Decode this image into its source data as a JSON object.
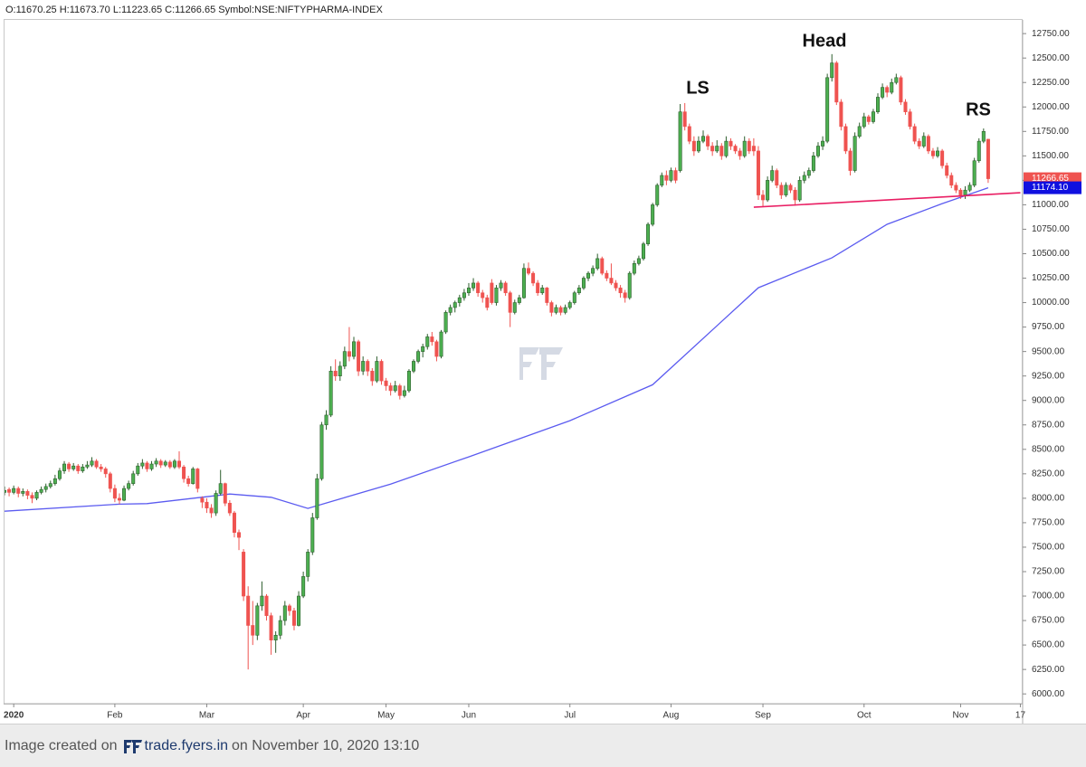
{
  "legend": "O:11670.25 H:11673.70 L:11223.65 C:11266.65 Symbol:NSE:NIFTYPHARMA-INDEX",
  "footer": {
    "prefix": "Image created on",
    "site": "trade.fyers.in",
    "suffix": "on November 10, 2020 13:10"
  },
  "chart_data": {
    "type": "candlestick",
    "up_color": "#4caf50",
    "down_color": "#ef5350",
    "grid": false,
    "ylim": [
      5900,
      12890
    ],
    "xlim": [
      0,
      221.5
    ],
    "yticks": [
      {
        "value": 6000,
        "label": "6000.00"
      },
      {
        "value": 6250,
        "label": "6250.00"
      },
      {
        "value": 6500,
        "label": "6500.00"
      },
      {
        "value": 6750,
        "label": "6750.00"
      },
      {
        "value": 7000,
        "label": "7000.00"
      },
      {
        "value": 7250,
        "label": "7250.00"
      },
      {
        "value": 7500,
        "label": "7500.00"
      },
      {
        "value": 7750,
        "label": "7750.00"
      },
      {
        "value": 8000,
        "label": "8000.00"
      },
      {
        "value": 8250,
        "label": "8250.00"
      },
      {
        "value": 8500,
        "label": "8500.00"
      },
      {
        "value": 8750,
        "label": "8750.00"
      },
      {
        "value": 9000,
        "label": "9000.00"
      },
      {
        "value": 9250,
        "label": "9250.00"
      },
      {
        "value": 9500,
        "label": "9500.00"
      },
      {
        "value": 9750,
        "label": "9750.00"
      },
      {
        "value": 10000,
        "label": "10000.00"
      },
      {
        "value": 10250,
        "label": "10250.00"
      },
      {
        "value": 10500,
        "label": "10500.00"
      },
      {
        "value": 10750,
        "label": "10750.00"
      },
      {
        "value": 11000,
        "label": "11000.00"
      },
      {
        "value": 11250,
        "label": "11250.00"
      },
      {
        "value": 11500,
        "label": "11500.00"
      },
      {
        "value": 11750,
        "label": "11750.00"
      },
      {
        "value": 12000,
        "label": "12000.00"
      },
      {
        "value": 12250,
        "label": "12250.00"
      },
      {
        "value": 12500,
        "label": "12500.00"
      },
      {
        "value": 12750,
        "label": "12750.00"
      }
    ],
    "xticks": [
      {
        "value": 2,
        "label": "2020"
      },
      {
        "value": 24,
        "label": "Feb"
      },
      {
        "value": 44,
        "label": "Mar"
      },
      {
        "value": 65,
        "label": "Apr"
      },
      {
        "value": 83,
        "label": "May"
      },
      {
        "value": 101,
        "label": "Jun"
      },
      {
        "value": 123,
        "label": "Jul"
      },
      {
        "value": 145,
        "label": "Aug"
      },
      {
        "value": 165,
        "label": "Sep"
      },
      {
        "value": 187,
        "label": "Oct"
      },
      {
        "value": 208,
        "label": "Nov"
      },
      {
        "value": 221,
        "label": "17"
      }
    ],
    "annotations": [
      "LS",
      "Head",
      "RS"
    ],
    "close_label": "11266.65",
    "ma": {
      "color": "#5b5bf0",
      "x": [
        0,
        25,
        31,
        49,
        58,
        66,
        84,
        101,
        123,
        141,
        155,
        164,
        180,
        192,
        204,
        214
      ],
      "values": [
        7868,
        7940,
        7945,
        8043,
        8010,
        7896,
        8145,
        8423,
        8793,
        9160,
        9763,
        10152,
        10457,
        10800,
        11012,
        11174.1
      ],
      "last_label": "11174.10"
    },
    "trendline": {
      "color": "#e91e63",
      "x": [
        163,
        221
      ],
      "values": [
        10975,
        11123
      ]
    },
    "candles": [
      [
        8060,
        8120,
        8030,
        8080
      ],
      [
        8090,
        8110,
        8020,
        8060
      ],
      [
        8060,
        8130,
        8040,
        8100
      ],
      [
        8100,
        8120,
        8010,
        8050
      ],
      [
        8050,
        8100,
        8020,
        8070
      ],
      [
        8070,
        8090,
        7990,
        8030
      ],
      [
        8030,
        8060,
        7950,
        8000
      ],
      [
        8000,
        8080,
        7980,
        8060
      ],
      [
        8060,
        8120,
        8040,
        8090
      ],
      [
        8090,
        8150,
        8060,
        8120
      ],
      [
        8120,
        8180,
        8100,
        8150
      ],
      [
        8150,
        8240,
        8130,
        8200
      ],
      [
        8200,
        8310,
        8180,
        8280
      ],
      [
        8280,
        8380,
        8250,
        8350
      ],
      [
        8350,
        8370,
        8270,
        8300
      ],
      [
        8300,
        8360,
        8280,
        8330
      ],
      [
        8330,
        8350,
        8250,
        8280
      ],
      [
        8280,
        8350,
        8260,
        8320
      ],
      [
        8320,
        8380,
        8300,
        8340
      ],
      [
        8340,
        8420,
        8320,
        8380
      ],
      [
        8380,
        8400,
        8300,
        8320
      ],
      [
        8320,
        8350,
        8270,
        8300
      ],
      [
        8300,
        8320,
        8210,
        8250
      ],
      [
        8250,
        8270,
        8060,
        8100
      ],
      [
        8100,
        8140,
        7960,
        8000
      ],
      [
        8000,
        8050,
        7940,
        7980
      ],
      [
        7980,
        8130,
        7970,
        8100
      ],
      [
        8100,
        8180,
        8080,
        8150
      ],
      [
        8150,
        8280,
        8130,
        8250
      ],
      [
        8250,
        8360,
        8230,
        8330
      ],
      [
        8330,
        8400,
        8300,
        8360
      ],
      [
        8360,
        8380,
        8270,
        8300
      ],
      [
        8300,
        8380,
        8280,
        8350
      ],
      [
        8350,
        8410,
        8320,
        8380
      ],
      [
        8380,
        8400,
        8310,
        8340
      ],
      [
        8340,
        8390,
        8320,
        8370
      ],
      [
        8370,
        8390,
        8300,
        8320
      ],
      [
        8320,
        8400,
        8300,
        8380
      ],
      [
        8380,
        8480,
        8300,
        8320
      ],
      [
        8320,
        8340,
        8160,
        8200
      ],
      [
        8200,
        8230,
        8120,
        8150
      ],
      [
        8150,
        8320,
        8140,
        8300
      ],
      [
        8300,
        8310,
        8060,
        8100
      ],
      [
        8000,
        8020,
        7900,
        7960
      ],
      [
        7960,
        8000,
        7850,
        7900
      ],
      [
        7900,
        7940,
        7800,
        7850
      ],
      [
        7850,
        8080,
        7820,
        8050
      ],
      [
        8050,
        8290,
        8030,
        8150
      ],
      [
        8150,
        8160,
        7920,
        7950
      ],
      [
        7950,
        7980,
        7820,
        7850
      ],
      [
        7850,
        7870,
        7600,
        7650
      ],
      [
        7650,
        7680,
        7470,
        7600
      ],
      [
        7450,
        7480,
        6950,
        7000
      ],
      [
        7000,
        7100,
        6250,
        6700
      ],
      [
        6700,
        6950,
        6500,
        6600
      ],
      [
        6600,
        6930,
        6550,
        6900
      ],
      [
        6900,
        7150,
        6850,
        7000
      ],
      [
        7000,
        7020,
        6750,
        6800
      ],
      [
        6800,
        6830,
        6400,
        6550
      ],
      [
        6550,
        6640,
        6420,
        6600
      ],
      [
        6600,
        6800,
        6560,
        6750
      ],
      [
        6750,
        6950,
        6700,
        6900
      ],
      [
        6900,
        6920,
        6800,
        6850
      ],
      [
        6850,
        6880,
        6650,
        6700
      ],
      [
        6700,
        7050,
        6690,
        7000
      ],
      [
        7000,
        7250,
        6980,
        7200
      ],
      [
        7200,
        7480,
        7150,
        7450
      ],
      [
        7450,
        7850,
        7420,
        7800
      ],
      [
        7800,
        8250,
        7780,
        8200
      ],
      [
        8200,
        8780,
        8180,
        8750
      ],
      [
        8750,
        8900,
        8700,
        8850
      ],
      [
        8850,
        9350,
        8830,
        9300
      ],
      [
        9300,
        9420,
        9200,
        9250
      ],
      [
        9250,
        9400,
        9200,
        9350
      ],
      [
        9350,
        9550,
        9320,
        9500
      ],
      [
        9500,
        9750,
        9400,
        9450
      ],
      [
        9450,
        9650,
        9420,
        9600
      ],
      [
        9600,
        9620,
        9250,
        9300
      ],
      [
        9300,
        9450,
        9260,
        9400
      ],
      [
        9400,
        9420,
        9250,
        9300
      ],
      [
        9300,
        9330,
        9150,
        9200
      ],
      [
        9200,
        9450,
        9180,
        9400
      ],
      [
        9400,
        9420,
        9160,
        9200
      ],
      [
        9200,
        9230,
        9100,
        9150
      ],
      [
        9150,
        9180,
        9050,
        9100
      ],
      [
        9100,
        9200,
        9080,
        9150
      ],
      [
        9150,
        9170,
        9010,
        9050
      ],
      [
        9050,
        9150,
        9030,
        9100
      ],
      [
        9100,
        9320,
        9080,
        9300
      ],
      [
        9300,
        9420,
        9280,
        9400
      ],
      [
        9400,
        9520,
        9380,
        9500
      ],
      [
        9500,
        9580,
        9440,
        9550
      ],
      [
        9550,
        9680,
        9520,
        9650
      ],
      [
        9650,
        9700,
        9560,
        9600
      ],
      [
        9600,
        9620,
        9400,
        9450
      ],
      [
        9450,
        9720,
        9430,
        9700
      ],
      [
        9700,
        9920,
        9680,
        9900
      ],
      [
        9900,
        9980,
        9870,
        9950
      ],
      [
        9950,
        10020,
        9900,
        10000
      ],
      [
        10000,
        10080,
        9960,
        10050
      ],
      [
        10050,
        10140,
        10020,
        10100
      ],
      [
        10100,
        10200,
        10070,
        10150
      ],
      [
        10150,
        10250,
        10120,
        10200
      ],
      [
        10200,
        10220,
        10060,
        10100
      ],
      [
        10100,
        10130,
        10000,
        10050
      ],
      [
        10050,
        10080,
        9920,
        9950
      ],
      [
        10200,
        10240,
        9980,
        10000
      ],
      [
        10000,
        10180,
        9970,
        10150
      ],
      [
        10150,
        10230,
        10120,
        10200
      ],
      [
        10200,
        10220,
        10070,
        10100
      ],
      [
        10100,
        10120,
        9750,
        9900
      ],
      [
        9900,
        10030,
        9880,
        10000
      ],
      [
        10000,
        10080,
        9980,
        10050
      ],
      [
        10050,
        10400,
        10040,
        10350
      ],
      [
        10350,
        10410,
        10280,
        10300
      ],
      [
        10300,
        10320,
        10170,
        10200
      ],
      [
        10200,
        10230,
        10070,
        10100
      ],
      [
        10100,
        10180,
        10080,
        10150
      ],
      [
        10150,
        10160,
        9970,
        10000
      ],
      [
        10000,
        10020,
        9860,
        9900
      ],
      [
        9900,
        9980,
        9880,
        9950
      ],
      [
        9950,
        9970,
        9870,
        9900
      ],
      [
        9900,
        9980,
        9880,
        9950
      ],
      [
        9950,
        10020,
        9930,
        10000
      ],
      [
        10000,
        10120,
        9980,
        10100
      ],
      [
        10100,
        10180,
        10080,
        10150
      ],
      [
        10150,
        10270,
        10130,
        10250
      ],
      [
        10250,
        10320,
        10220,
        10300
      ],
      [
        10300,
        10380,
        10270,
        10350
      ],
      [
        10350,
        10500,
        10330,
        10450
      ],
      [
        10450,
        10470,
        10280,
        10300
      ],
      [
        10300,
        10330,
        10220,
        10250
      ],
      [
        10250,
        10400,
        10180,
        10200
      ],
      [
        10200,
        10230,
        10120,
        10150
      ],
      [
        10150,
        10180,
        10050,
        10100
      ],
      [
        10100,
        10130,
        10000,
        10050
      ],
      [
        10050,
        10320,
        10030,
        10300
      ],
      [
        10300,
        10430,
        10280,
        10400
      ],
      [
        10400,
        10480,
        10380,
        10450
      ],
      [
        10450,
        10620,
        10430,
        10600
      ],
      [
        10600,
        10820,
        10580,
        10800
      ],
      [
        10800,
        11020,
        10780,
        11000
      ],
      [
        11000,
        11220,
        10980,
        11200
      ],
      [
        11200,
        11330,
        11180,
        11300
      ],
      [
        11300,
        11350,
        11200,
        11250
      ],
      [
        11250,
        11380,
        11230,
        11350
      ],
      [
        11350,
        11380,
        11220,
        11250
      ],
      [
        11350,
        12030,
        11330,
        11950
      ],
      [
        11950,
        12040,
        11760,
        11800
      ],
      [
        11800,
        11830,
        11620,
        11650
      ],
      [
        11650,
        11700,
        11500,
        11550
      ],
      [
        11550,
        11700,
        11530,
        11650
      ],
      [
        11650,
        11760,
        11630,
        11700
      ],
      [
        11700,
        11720,
        11560,
        11600
      ],
      [
        11600,
        11640,
        11500,
        11550
      ],
      [
        11550,
        11660,
        11530,
        11600
      ],
      [
        11600,
        11630,
        11460,
        11500
      ],
      [
        11500,
        11700,
        11480,
        11650
      ],
      [
        11650,
        11680,
        11560,
        11600
      ],
      [
        11600,
        11620,
        11520,
        11550
      ],
      [
        11550,
        11580,
        11460,
        11500
      ],
      [
        11500,
        11700,
        11480,
        11650
      ],
      [
        11650,
        11680,
        11520,
        11550
      ],
      [
        11600,
        11680,
        11500,
        11550
      ],
      [
        11550,
        11600,
        11050,
        11100
      ],
      [
        11100,
        11150,
        10980,
        11050
      ],
      [
        11050,
        11290,
        11030,
        11250
      ],
      [
        11250,
        11400,
        11230,
        11350
      ],
      [
        11350,
        11370,
        11170,
        11200
      ],
      [
        11200,
        11230,
        11060,
        11100
      ],
      [
        11100,
        11230,
        11080,
        11200
      ],
      [
        11200,
        11220,
        11120,
        11150
      ],
      [
        11150,
        11180,
        10990,
        11050
      ],
      [
        11050,
        11290,
        11030,
        11250
      ],
      [
        11250,
        11340,
        11220,
        11300
      ],
      [
        11300,
        11380,
        11270,
        11350
      ],
      [
        11350,
        11540,
        11330,
        11500
      ],
      [
        11500,
        11640,
        11480,
        11600
      ],
      [
        11600,
        11700,
        11560,
        11650
      ],
      [
        11650,
        12340,
        11630,
        12300
      ],
      [
        12300,
        12540,
        12260,
        12450
      ],
      [
        12450,
        12470,
        12020,
        12050
      ],
      [
        12050,
        12080,
        11760,
        11800
      ],
      [
        11800,
        11830,
        11520,
        11550
      ],
      [
        11550,
        11580,
        11300,
        11350
      ],
      [
        11350,
        11740,
        11330,
        11700
      ],
      [
        11700,
        11840,
        11680,
        11800
      ],
      [
        11800,
        11940,
        11780,
        11900
      ],
      [
        11900,
        11920,
        11820,
        11850
      ],
      [
        11850,
        11980,
        11830,
        11950
      ],
      [
        11950,
        12140,
        11930,
        12100
      ],
      [
        12100,
        12240,
        12080,
        12200
      ],
      [
        12200,
        12220,
        12100,
        12150
      ],
      [
        12150,
        12290,
        12130,
        12250
      ],
      [
        12250,
        12340,
        12230,
        12300
      ],
      [
        12300,
        12320,
        12020,
        12050
      ],
      [
        12050,
        12080,
        11920,
        11950
      ],
      [
        11950,
        11980,
        11770,
        11800
      ],
      [
        11800,
        11830,
        11620,
        11650
      ],
      [
        11650,
        11680,
        11570,
        11600
      ],
      [
        11600,
        11740,
        11580,
        11700
      ],
      [
        11700,
        11720,
        11520,
        11550
      ],
      [
        11550,
        11580,
        11470,
        11500
      ],
      [
        11500,
        11590,
        11480,
        11550
      ],
      [
        11550,
        11570,
        11370,
        11400
      ],
      [
        11400,
        11430,
        11270,
        11300
      ],
      [
        11300,
        11330,
        11170,
        11200
      ],
      [
        11200,
        11230,
        11120,
        11150
      ],
      [
        11150,
        11170,
        11060,
        11100
      ],
      [
        11100,
        11190,
        11060,
        11150
      ],
      [
        11150,
        11230,
        11130,
        11200
      ],
      [
        11200,
        11480,
        11180,
        11450
      ],
      [
        11450,
        11680,
        11430,
        11650
      ],
      [
        11650,
        11780,
        11630,
        11750
      ],
      [
        11670.25,
        11673.7,
        11223.65,
        11266.65
      ]
    ]
  }
}
